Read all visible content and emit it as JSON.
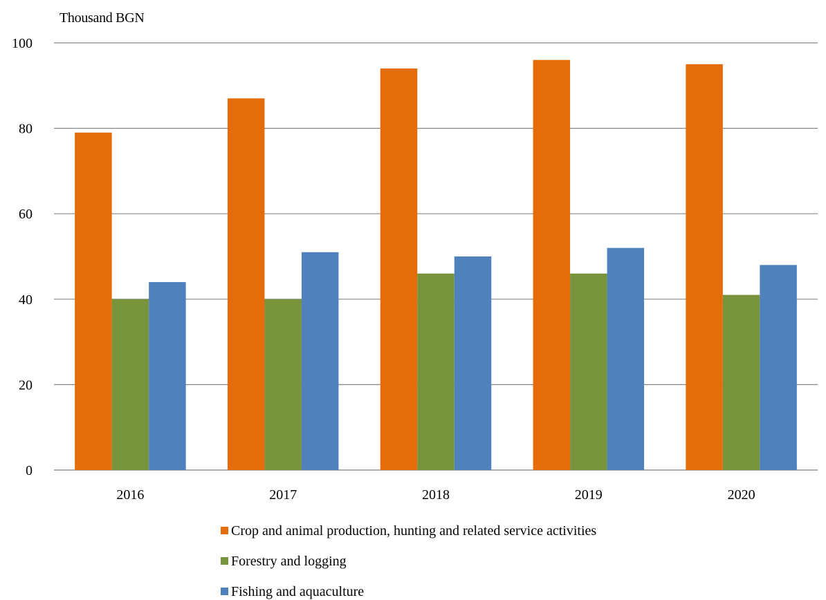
{
  "chart_data": {
    "type": "bar",
    "ylabel": "Thousand BGN",
    "categories": [
      "2016",
      "2017",
      "2018",
      "2019",
      "2020"
    ],
    "series": [
      {
        "name": "Crop and animal production, hunting and related service activities",
        "color": "#E46C0A",
        "values": [
          79,
          87,
          94,
          96,
          95
        ]
      },
      {
        "name": "Forestry and logging",
        "color": "#77933C",
        "values": [
          40,
          40,
          46,
          46,
          41
        ]
      },
      {
        "name": "Fishing and aquaculture",
        "color": "#4F81BD",
        "values": [
          44,
          51,
          50,
          52,
          48
        ]
      }
    ],
    "ylim": [
      0,
      100
    ],
    "yticks": [
      "0",
      "20",
      "40",
      "60",
      "80",
      "100"
    ],
    "grid": true,
    "legend_position": "bottom"
  }
}
